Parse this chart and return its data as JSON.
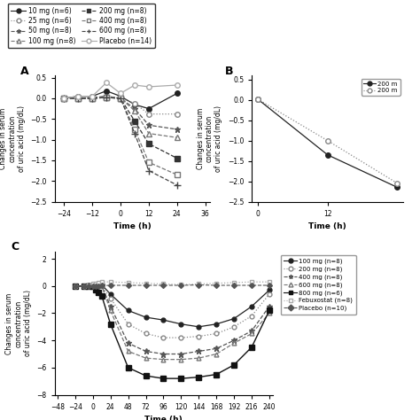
{
  "panel_A": {
    "title": "A",
    "xlabel": "Time (h)",
    "ylabel": "Changes in serum\nconcentration\nof uric acid (mg/dL)",
    "xlim": [
      -28,
      38
    ],
    "ylim": [
      -2.5,
      0.55
    ],
    "xticks": [
      -24,
      -12,
      0,
      12,
      24,
      36
    ],
    "series": [
      {
        "label": "10 mg (n=6)",
        "x": [
          -24,
          -18,
          -12,
          -6,
          0,
          6,
          12,
          24
        ],
        "y": [
          0.0,
          0.05,
          0.05,
          0.18,
          0.05,
          -0.15,
          -0.25,
          0.12
        ],
        "color": "#222222",
        "ls": "-",
        "marker": "o",
        "mfc": "#222222",
        "ms": 4,
        "lw": 0.9
      },
      {
        "label": "25 mg (n=6)",
        "x": [
          -24,
          -18,
          -12,
          -6,
          0,
          6,
          12,
          24
        ],
        "y": [
          0.0,
          0.0,
          0.02,
          0.02,
          0.0,
          -0.12,
          -0.38,
          -0.38
        ],
        "color": "#888888",
        "ls": ":",
        "marker": "o",
        "mfc": "white",
        "ms": 4,
        "lw": 0.9
      },
      {
        "label": "50 mg (n=8)",
        "x": [
          -24,
          -18,
          -12,
          -6,
          0,
          6,
          12,
          24
        ],
        "y": [
          0.0,
          0.0,
          0.02,
          0.05,
          0.0,
          -0.25,
          -0.65,
          -0.75
        ],
        "color": "#555555",
        "ls": "--",
        "marker": "*",
        "mfc": "#555555",
        "ms": 5,
        "lw": 0.9
      },
      {
        "label": "100 mg (n=8)",
        "x": [
          -24,
          -18,
          -12,
          -6,
          0,
          6,
          12,
          24
        ],
        "y": [
          0.0,
          0.0,
          0.0,
          0.05,
          0.0,
          -0.3,
          -0.85,
          -0.95
        ],
        "color": "#777777",
        "ls": "--",
        "marker": "^",
        "mfc": "white",
        "ms": 4,
        "lw": 0.9
      },
      {
        "label": "200 mg (n=8)",
        "x": [
          -24,
          -18,
          -12,
          -6,
          0,
          6,
          12,
          24
        ],
        "y": [
          0.0,
          0.0,
          0.0,
          0.02,
          0.0,
          -0.55,
          -1.1,
          -1.45
        ],
        "color": "#333333",
        "ls": "--",
        "marker": "s",
        "mfc": "#333333",
        "ms": 4,
        "lw": 0.9
      },
      {
        "label": "400 mg (n=8)",
        "x": [
          -24,
          -18,
          -12,
          -6,
          0,
          6,
          12,
          24
        ],
        "y": [
          0.0,
          0.0,
          0.0,
          0.02,
          0.0,
          -0.75,
          -1.55,
          -1.85
        ],
        "color": "#777777",
        "ls": "--",
        "marker": "s",
        "mfc": "white",
        "ms": 4,
        "lw": 0.9
      },
      {
        "label": "600 mg (n=8)",
        "x": [
          -24,
          -18,
          -12,
          -6,
          0,
          6,
          12,
          24
        ],
        "y": [
          0.0,
          0.0,
          0.0,
          0.02,
          0.0,
          -0.85,
          -1.75,
          -2.1
        ],
        "color": "#444444",
        "ls": "--",
        "marker": "+",
        "mfc": "#444444",
        "ms": 6,
        "lw": 0.9
      },
      {
        "label": "Placebo (n=14)",
        "x": [
          -24,
          -18,
          -12,
          -6,
          0,
          6,
          12,
          24
        ],
        "y": [
          0.0,
          0.05,
          0.05,
          0.38,
          0.12,
          0.32,
          0.28,
          0.32
        ],
        "color": "#aaaaaa",
        "ls": "-",
        "marker": "o",
        "mfc": "white",
        "ms": 4,
        "lw": 0.9
      }
    ]
  },
  "panel_B": {
    "title": "B",
    "xlabel": "Time (h)",
    "ylabel": "Changes in serum\nconcentration\nof uric acid (mg/dL)",
    "xlim": [
      -1,
      25
    ],
    "ylim": [
      -2.5,
      0.6
    ],
    "xticks": [
      0,
      12
    ],
    "yticks": [
      0.5,
      0.0,
      -0.5,
      -1.0,
      -1.5,
      -2.0,
      -2.5
    ],
    "series": [
      {
        "label": "200 m",
        "x": [
          0,
          12,
          24
        ],
        "y": [
          0.02,
          -1.35,
          -2.15
        ],
        "color": "#222222",
        "ls": "-",
        "marker": "o",
        "mfc": "#222222",
        "ms": 4,
        "lw": 0.9
      },
      {
        "label": "200 m",
        "x": [
          0,
          12,
          24
        ],
        "y": [
          0.02,
          -1.0,
          -2.05
        ],
        "color": "#888888",
        "ls": ":",
        "marker": "o",
        "mfc": "white",
        "ms": 4,
        "lw": 0.9
      }
    ]
  },
  "panel_C": {
    "title": "C",
    "xlabel": "Time (h)",
    "ylabel": "Changes in serum\nconcentration\nof uric acid (mg/dL)",
    "xlim": [
      -52,
      245
    ],
    "ylim": [
      -8,
      2.5
    ],
    "xticks": [
      -48,
      -24,
      0,
      24,
      48,
      72,
      96,
      120,
      144,
      168,
      192,
      216,
      240
    ],
    "yticks": [
      -8,
      -6,
      -4,
      -2,
      0,
      2
    ],
    "series": [
      {
        "label": "100 mg (n=8)",
        "x": [
          -24,
          -12,
          -6,
          0,
          4,
          8,
          12,
          24,
          48,
          72,
          96,
          120,
          144,
          168,
          192,
          216,
          240
        ],
        "y": [
          0,
          0,
          0.05,
          0.05,
          0.1,
          0.1,
          0.1,
          -0.6,
          -1.8,
          -2.3,
          -2.5,
          -2.8,
          -3.0,
          -2.8,
          -2.4,
          -1.5,
          -0.3
        ],
        "color": "#222222",
        "ls": "-",
        "marker": "o",
        "mfc": "#222222",
        "ms": 3.5,
        "lw": 0.9
      },
      {
        "label": "200 mg (n=8)",
        "x": [
          -24,
          -12,
          -6,
          0,
          4,
          8,
          12,
          24,
          48,
          72,
          96,
          120,
          144,
          168,
          192,
          216,
          240
        ],
        "y": [
          0,
          0,
          0.02,
          0.02,
          0.05,
          0.05,
          0.05,
          -0.9,
          -2.8,
          -3.5,
          -3.8,
          -3.8,
          -3.7,
          -3.5,
          -3.0,
          -2.2,
          -0.6
        ],
        "color": "#888888",
        "ls": ":",
        "marker": "o",
        "mfc": "white",
        "ms": 3.5,
        "lw": 0.9
      },
      {
        "label": "400 mg (n=8)",
        "x": [
          -24,
          -12,
          -6,
          0,
          4,
          8,
          12,
          24,
          48,
          72,
          96,
          120,
          144,
          168,
          192,
          216,
          240
        ],
        "y": [
          0,
          0,
          0.02,
          0.02,
          0.02,
          0.02,
          0.02,
          -1.5,
          -4.2,
          -4.8,
          -5.0,
          -5.0,
          -4.8,
          -4.6,
          -4.0,
          -3.3,
          -1.5
        ],
        "color": "#555555",
        "ls": "--",
        "marker": "*",
        "mfc": "#555555",
        "ms": 4.5,
        "lw": 0.9
      },
      {
        "label": "600 mg (n=8)",
        "x": [
          -24,
          -12,
          -6,
          0,
          4,
          8,
          12,
          24,
          48,
          72,
          96,
          120,
          144,
          168,
          192,
          216,
          240
        ],
        "y": [
          0,
          0,
          0.02,
          0.02,
          0.02,
          0.02,
          0.02,
          -1.8,
          -4.8,
          -5.3,
          -5.4,
          -5.4,
          -5.3,
          -5.0,
          -4.2,
          -3.5,
          -2.0
        ],
        "color": "#777777",
        "ls": "--",
        "marker": "^",
        "mfc": "white",
        "ms": 3.5,
        "lw": 0.9
      },
      {
        "label": "800 mg (n=6)",
        "x": [
          -24,
          -12,
          -6,
          0,
          4,
          8,
          12,
          24,
          48,
          72,
          96,
          120,
          144,
          168,
          192,
          216,
          240
        ],
        "y": [
          0,
          0,
          0,
          0,
          -0.3,
          -0.5,
          -0.7,
          -2.8,
          -6.0,
          -6.6,
          -6.8,
          -6.8,
          -6.7,
          -6.5,
          -5.8,
          -4.5,
          -1.8
        ],
        "color": "#111111",
        "ls": "-",
        "marker": "s",
        "mfc": "#111111",
        "ms": 4,
        "lw": 1.0
      },
      {
        "label": "Febuxostat (n=8)",
        "x": [
          -24,
          -12,
          -6,
          0,
          4,
          8,
          12,
          24,
          48,
          72,
          96,
          120,
          144,
          168,
          192,
          216,
          240
        ],
        "y": [
          0,
          0,
          0.05,
          0.2,
          0.2,
          0.25,
          0.3,
          0.3,
          0.25,
          0.2,
          0.15,
          0.1,
          0.15,
          0.2,
          0.25,
          0.3,
          0.3
        ],
        "color": "#aaaaaa",
        "ls": ":",
        "marker": "s",
        "mfc": "white",
        "ms": 3.5,
        "lw": 0.9
      },
      {
        "label": "Placebo (n=10)",
        "x": [
          -24,
          -12,
          -6,
          0,
          4,
          8,
          12,
          24,
          48,
          72,
          96,
          120,
          144,
          168,
          192,
          216,
          240
        ],
        "y": [
          0,
          0,
          0,
          0,
          0,
          0,
          0.02,
          0.05,
          0.05,
          0.05,
          0.05,
          0.05,
          0.08,
          0.05,
          0.05,
          0.05,
          0.05
        ],
        "color": "#555555",
        "ls": "--",
        "marker": "D",
        "mfc": "#555555",
        "ms": 3,
        "lw": 0.8
      }
    ]
  },
  "legend_A": {
    "entries": [
      {
        "label": "10 mg (n=6)",
        "color": "#222222",
        "ls": "-",
        "marker": "o",
        "mfc": "#222222"
      },
      {
        "label": "25 mg (n=6)",
        "color": "#888888",
        "ls": ":",
        "marker": "o",
        "mfc": "white"
      },
      {
        "label": "50 mg (n=8)",
        "color": "#555555",
        "ls": "--",
        "marker": "*",
        "mfc": "#555555"
      },
      {
        "label": "100 mg (n=8)",
        "color": "#777777",
        "ls": "--",
        "marker": "^",
        "mfc": "white"
      },
      {
        "label": "200 mg (n=8)",
        "color": "#333333",
        "ls": "--",
        "marker": "s",
        "mfc": "#333333"
      },
      {
        "label": "400 mg (n=8)",
        "color": "#777777",
        "ls": "--",
        "marker": "s",
        "mfc": "white"
      },
      {
        "label": "600 mg (n=8)",
        "color": "#444444",
        "ls": "--",
        "marker": "+",
        "mfc": "#444444"
      },
      {
        "label": "Placebo (n=14)",
        "color": "#aaaaaa",
        "ls": "-",
        "marker": "o",
        "mfc": "white"
      }
    ]
  }
}
